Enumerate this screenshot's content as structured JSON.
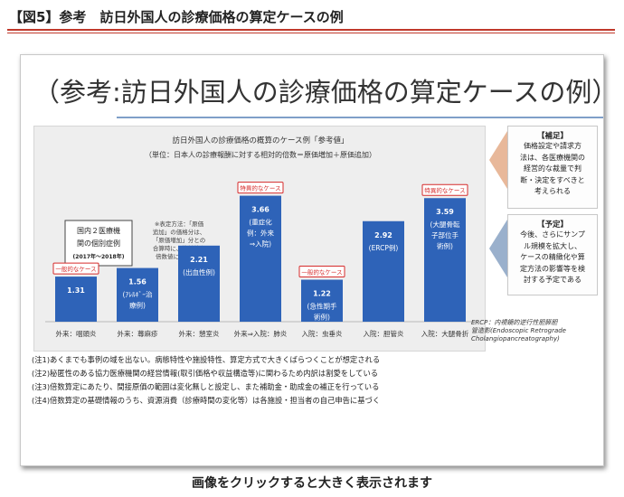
{
  "header": {
    "title": "【図5】参考　訪日外国人の診療価格の算定ケースの例",
    "accent_color": "#c0392b"
  },
  "slide": {
    "title": "（参考:訪日外国人の診療価格の算定ケースの例）",
    "supplement": {
      "title": "【補足】",
      "lines": [
        "価格設定や請求方",
        "法は、各医療機関の",
        "経営的な裁量で判",
        "断・決定をすべきと",
        "考えられる"
      ]
    },
    "plan": {
      "title": "【予定】",
      "lines": [
        "今後、さらにサンプ",
        "ル規模を拡大し、",
        "ケースの精緻化や算",
        "定方法の影響等を検",
        "討する予定である"
      ]
    },
    "abbreviation": [
      "ERCP：内視鏡的逆行性胆膵胆",
      "管造影(Endoscopic Retrograde",
      "Cholangiopancreatography)"
    ],
    "notes": [
      "(注1)あくまでも事例の域を出ない。病態特性や施設特性、算定方式で大きくばらつくことが想定される",
      "(注2)秘匿性のある協力医療機関の経営情報(取引価格や収益構造等)に関わるため内訳は割愛をしている",
      "(注3)倍数算定にあたり、間接原価の範囲は変化無しと設定し、また補助金・助成金の補正を行っている",
      "(注4)倍数算定の基礎情報のうち、資源消費（診療時間の変化等）は各施設・担当者の自己申告に基づく"
    ]
  },
  "chart_data": {
    "type": "bar",
    "title": "訪日外国人の診療価格の概算のケース例「参考値」",
    "subtitle": "（単位：日本人の診療報酬に対する相対的倍数＝原価増加＋原価追加）",
    "categories": [
      "外来：咽頭炎",
      "外来：蕁麻疹",
      "外来：憩室炎",
      "外来⇒入院：肺炎",
      "入院：虫垂炎",
      "入院：胆管炎",
      "入院：大腿骨折"
    ],
    "values": [
      1.31,
      1.56,
      2.21,
      3.66,
      1.22,
      2.92,
      3.59
    ],
    "value_labels": [
      "1.31",
      "1.56",
      "2.21",
      "3.66",
      "1.22",
      "2.92",
      "3.59"
    ],
    "bar_notes": [
      [],
      [
        "(ｱﾚﾙｷﾞｰ治",
        "療例)"
      ],
      [
        "(出血性例)"
      ],
      [
        "(重症化",
        "例：外来",
        "⇒入院)"
      ],
      [
        "(急性期手",
        "術例)"
      ],
      [
        "(ERCP例)"
      ],
      [
        "(大腿骨転",
        "子部位手",
        "術例)"
      ]
    ],
    "case_tags": [
      "一般的なケース",
      "",
      "",
      "特異的なケース",
      "一般的なケース",
      "",
      "特異的なケース"
    ],
    "legend_box": [
      "国内２医療機",
      "関の個別症例",
      "(2017年～2018年)"
    ],
    "method_note": [
      "※表定方法：「原価",
      "追加」の価格分は、",
      "「原価増加」分との",
      "合算時に、絶対値を",
      "倍数値に換算した"
    ],
    "ylim": [
      0,
      4.2
    ],
    "grid": true,
    "bar_color": "#2e63b8",
    "tag_color": "#d62b2b"
  }
}
